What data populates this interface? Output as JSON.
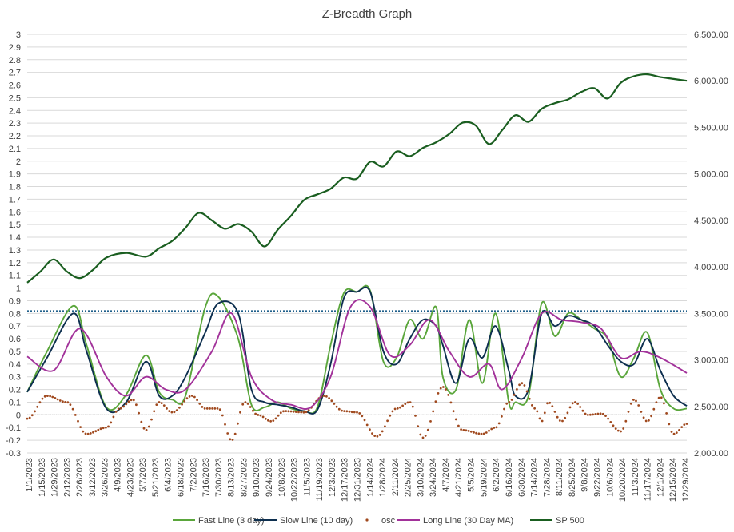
{
  "chart_data": {
    "type": "line",
    "title": "Z-Breadth Graph",
    "y_left": {
      "min": -0.3,
      "max": 3,
      "step": 0.1,
      "tick_labels": [
        "-0.3",
        "-0.2",
        "-0.1",
        "0",
        "0.1",
        "0.2",
        "0.3",
        "0.4",
        "0.5",
        "0.6",
        "0.7",
        "0.8",
        "0.9",
        "1",
        "1.1",
        "1.2",
        "1.3",
        "1.4",
        "1.5",
        "1.6",
        "1.7",
        "1.8",
        "1.9",
        "2",
        "2.1",
        "2.2",
        "2.3",
        "2.4",
        "2.5",
        "2.6",
        "2.7",
        "2.8",
        "2.9",
        "3"
      ]
    },
    "y_right": {
      "min": 2000,
      "max": 6500,
      "step": 500,
      "tick_labels": [
        "2,000.00",
        "2,500.00",
        "3,000.00",
        "3,500.00",
        "4,000.00",
        "4,500.00",
        "5,000.00",
        "5,500.00",
        "6,000.00",
        "6,500.00"
      ]
    },
    "x_range": [
      "1/1/2023",
      "1/4/2025"
    ],
    "x_tick_labels": [
      "1/1/2023",
      "1/15/2023",
      "1/29/2023",
      "2/12/2023",
      "2/26/2023",
      "3/12/2023",
      "3/26/2023",
      "4/9/2023",
      "4/23/2023",
      "5/7/2023",
      "5/21/2023",
      "6/4/2023",
      "6/18/2023",
      "7/2/2023",
      "7/16/2023",
      "7/30/2023",
      "8/13/2023",
      "8/27/2023",
      "9/10/2023",
      "9/24/2023",
      "10/8/2023",
      "10/22/2023",
      "11/5/2023",
      "11/19/2023",
      "12/3/2023",
      "12/17/2023",
      "12/31/2023",
      "1/14/2024",
      "1/28/2024",
      "2/11/2024",
      "2/25/2024",
      "3/10/2024",
      "3/24/2024",
      "4/7/2024",
      "4/21/2024",
      "5/5/2024",
      "5/19/2024",
      "6/2/2024",
      "6/16/2024",
      "6/30/2024",
      "7/14/2024",
      "7/28/2024",
      "8/11/2024",
      "8/25/2024",
      "9/8/2024",
      "9/22/2024",
      "10/6/2024",
      "10/20/2024",
      "11/3/2024",
      "11/17/2024",
      "12/1/2024",
      "12/15/2024",
      "12/29/2024"
    ],
    "reference_lines": [
      {
        "value": 1,
        "style": "dotted",
        "color": "#595959"
      },
      {
        "value": 0.82,
        "style": "dotted",
        "color": "#1f5f8b"
      },
      {
        "value": 0,
        "style": "dotted",
        "color": "#595959"
      }
    ],
    "series": [
      {
        "name": "Fast Line (3 day)",
        "axis": "left",
        "style": "line",
        "color": "#5aa63b",
        "x": [
          0,
          0.03,
          0.07,
          0.09,
          0.12,
          0.15,
          0.18,
          0.2,
          0.22,
          0.24,
          0.27,
          0.29,
          0.32,
          0.34,
          0.36,
          0.38,
          0.4,
          0.42,
          0.44,
          0.46,
          0.48,
          0.5,
          0.52,
          0.54,
          0.56,
          0.58,
          0.6,
          0.62,
          0.63,
          0.65,
          0.67,
          0.69,
          0.71,
          0.73,
          0.74,
          0.76,
          0.78,
          0.8,
          0.82,
          0.84,
          0.86,
          0.88,
          0.9,
          0.92,
          0.94,
          0.96,
          0.98,
          1
        ],
        "y": [
          0.18,
          0.5,
          0.86,
          0.55,
          0.06,
          0.16,
          0.47,
          0.18,
          0.12,
          0.15,
          0.85,
          0.93,
          0.6,
          0.08,
          0.06,
          0.1,
          0.05,
          0.03,
          0.06,
          0.55,
          0.96,
          0.97,
          0.98,
          0.42,
          0.45,
          0.75,
          0.6,
          0.85,
          0.3,
          0.2,
          0.75,
          0.25,
          0.8,
          0.1,
          0.1,
          0.15,
          0.88,
          0.62,
          0.8,
          0.75,
          0.68,
          0.6,
          0.3,
          0.45,
          0.65,
          0.2,
          0.05,
          0.05
        ]
      },
      {
        "name": "Slow Line (10 day)",
        "axis": "left",
        "style": "line",
        "color": "#0d2f4f",
        "x": [
          0,
          0.03,
          0.07,
          0.09,
          0.12,
          0.15,
          0.18,
          0.2,
          0.22,
          0.24,
          0.27,
          0.29,
          0.32,
          0.34,
          0.36,
          0.38,
          0.4,
          0.42,
          0.44,
          0.46,
          0.48,
          0.5,
          0.52,
          0.54,
          0.56,
          0.58,
          0.6,
          0.62,
          0.63,
          0.65,
          0.67,
          0.69,
          0.71,
          0.73,
          0.74,
          0.76,
          0.78,
          0.8,
          0.82,
          0.84,
          0.86,
          0.88,
          0.9,
          0.92,
          0.94,
          0.96,
          0.98,
          1
        ],
        "y": [
          0.18,
          0.45,
          0.8,
          0.5,
          0.05,
          0.1,
          0.42,
          0.15,
          0.15,
          0.3,
          0.65,
          0.88,
          0.8,
          0.2,
          0.1,
          0.08,
          0.06,
          0.03,
          0.04,
          0.4,
          0.92,
          0.97,
          0.97,
          0.5,
          0.4,
          0.6,
          0.75,
          0.7,
          0.55,
          0.25,
          0.6,
          0.45,
          0.7,
          0.35,
          0.15,
          0.2,
          0.8,
          0.7,
          0.78,
          0.75,
          0.7,
          0.55,
          0.42,
          0.4,
          0.6,
          0.35,
          0.15,
          0.07
        ]
      },
      {
        "name": "osc",
        "axis": "left",
        "style": "dots",
        "color": "#a0491e",
        "x": [
          0,
          0.03,
          0.06,
          0.09,
          0.12,
          0.14,
          0.16,
          0.18,
          0.2,
          0.22,
          0.25,
          0.27,
          0.29,
          0.31,
          0.33,
          0.35,
          0.37,
          0.39,
          0.42,
          0.45,
          0.48,
          0.5,
          0.53,
          0.56,
          0.58,
          0.6,
          0.63,
          0.66,
          0.69,
          0.71,
          0.73,
          0.75,
          0.77,
          0.78,
          0.79,
          0.81,
          0.83,
          0.85,
          0.87,
          0.9,
          0.92,
          0.94,
          0.96,
          0.98,
          1
        ],
        "y": [
          -0.03,
          0.15,
          0.1,
          -0.15,
          -0.1,
          0.05,
          0.12,
          -0.12,
          0.1,
          0.02,
          0.15,
          0.05,
          0.05,
          -0.2,
          0.1,
          0.0,
          -0.05,
          0.03,
          0.02,
          0.15,
          0.03,
          0.02,
          -0.17,
          0.05,
          0.1,
          -0.18,
          0.22,
          -0.12,
          -0.15,
          -0.1,
          0.1,
          0.25,
          0.05,
          -0.05,
          0.1,
          -0.05,
          0.1,
          0.0,
          0.01,
          -0.13,
          0.12,
          -0.05,
          0.14,
          -0.15,
          -0.07
        ]
      },
      {
        "name": "Long Line (30 Day MA)",
        "axis": "left",
        "style": "line",
        "color": "#a2329a",
        "x": [
          0,
          0.04,
          0.08,
          0.12,
          0.15,
          0.18,
          0.21,
          0.24,
          0.28,
          0.31,
          0.34,
          0.37,
          0.4,
          0.43,
          0.46,
          0.49,
          0.52,
          0.55,
          0.58,
          0.61,
          0.64,
          0.67,
          0.7,
          0.72,
          0.75,
          0.78,
          0.81,
          0.84,
          0.87,
          0.9,
          0.93,
          0.96,
          1
        ],
        "y": [
          0.46,
          0.35,
          0.68,
          0.3,
          0.15,
          0.3,
          0.2,
          0.2,
          0.5,
          0.8,
          0.3,
          0.12,
          0.08,
          0.06,
          0.3,
          0.85,
          0.85,
          0.47,
          0.55,
          0.75,
          0.5,
          0.3,
          0.4,
          0.2,
          0.45,
          0.8,
          0.75,
          0.73,
          0.68,
          0.45,
          0.5,
          0.45,
          0.33
        ]
      },
      {
        "name": "SP 500",
        "axis": "right",
        "style": "line",
        "color": "#1a5e20",
        "x": [
          0,
          0.02,
          0.04,
          0.06,
          0.08,
          0.1,
          0.12,
          0.15,
          0.18,
          0.2,
          0.22,
          0.24,
          0.26,
          0.28,
          0.3,
          0.32,
          0.34,
          0.36,
          0.38,
          0.4,
          0.42,
          0.44,
          0.46,
          0.48,
          0.5,
          0.52,
          0.54,
          0.56,
          0.58,
          0.6,
          0.62,
          0.64,
          0.66,
          0.68,
          0.7,
          0.72,
          0.74,
          0.76,
          0.78,
          0.8,
          0.82,
          0.84,
          0.86,
          0.88,
          0.9,
          0.92,
          0.94,
          0.96,
          0.98,
          1
        ],
        "y": [
          3830,
          3950,
          4080,
          3950,
          3880,
          3970,
          4100,
          4150,
          4110,
          4200,
          4280,
          4420,
          4580,
          4500,
          4410,
          4460,
          4380,
          4220,
          4400,
          4550,
          4720,
          4780,
          4840,
          4960,
          4950,
          5130,
          5080,
          5240,
          5190,
          5280,
          5340,
          5430,
          5550,
          5520,
          5320,
          5470,
          5630,
          5560,
          5700,
          5760,
          5800,
          5880,
          5920,
          5810,
          5980,
          6050,
          6070,
          6040,
          6020,
          6000
        ]
      }
    ],
    "legend": [
      "Fast Line (3 day)",
      "Slow Line (10 day)",
      "osc",
      "Long Line (30 Day MA)",
      "SP 500"
    ],
    "legend_position": "bottom"
  }
}
